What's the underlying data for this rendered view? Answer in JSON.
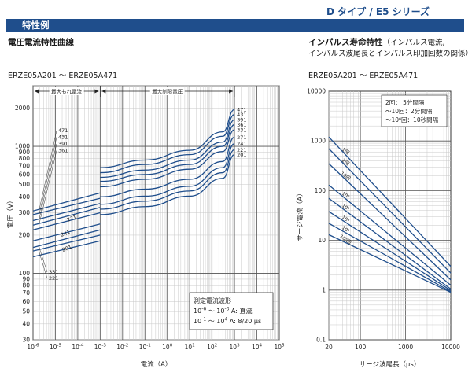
{
  "header": {
    "series_title": "D タイプ  /  E5 シリーズ",
    "section_label": "特性例"
  },
  "chart_data": [
    {
      "type": "line",
      "title": "電圧電流特性曲線",
      "subtitle": "ERZE05A201 ～ ERZE05A471",
      "xlabel": "電流（A）",
      "ylabel": "電圧（V）",
      "x_scale": "log",
      "y_scale": "log",
      "xlim": [
        1e-06,
        100000.0
      ],
      "ylim": [
        30,
        3000
      ],
      "x_ticks": [
        {
          "v": 1e-06,
          "base": "10",
          "exp": "-6"
        },
        {
          "v": 1e-05,
          "base": "10",
          "exp": "-5"
        },
        {
          "v": 0.0001,
          "base": "10",
          "exp": "-4"
        },
        {
          "v": 0.001,
          "base": "10",
          "exp": "-3"
        },
        {
          "v": 0.01,
          "base": "10",
          "exp": "-2"
        },
        {
          "v": 0.1,
          "base": "10",
          "exp": "-1"
        },
        {
          "v": 1,
          "base": "10",
          "exp": "0"
        },
        {
          "v": 10,
          "base": "10",
          "exp": "1"
        },
        {
          "v": 100,
          "base": "10",
          "exp": "2"
        },
        {
          "v": 1000,
          "base": "10",
          "exp": "3"
        },
        {
          "v": 10000,
          "base": "10",
          "exp": "4"
        },
        {
          "v": 100000,
          "base": "10",
          "exp": "5"
        }
      ],
      "y_ticks": [
        {
          "v": 30,
          "label": "30"
        },
        {
          "v": 40,
          "label": "40"
        },
        {
          "v": 50,
          "label": "50"
        },
        {
          "v": 60,
          "label": "60"
        },
        {
          "v": 70,
          "label": "70"
        },
        {
          "v": 80,
          "label": "80"
        },
        {
          "v": 90,
          "label": "90"
        },
        {
          "v": 100,
          "label": "100"
        },
        {
          "v": 200,
          "label": "200"
        },
        {
          "v": 300,
          "label": "300"
        },
        {
          "v": 400,
          "label": "400"
        },
        {
          "v": 500,
          "label": "500"
        },
        {
          "v": 600,
          "label": "600"
        },
        {
          "v": 700,
          "label": "700"
        },
        {
          "v": 800,
          "label": "800"
        },
        {
          "v": 900,
          "label": "900"
        },
        {
          "v": 1000,
          "label": "1000"
        },
        {
          "v": 2000,
          "label": "2000"
        }
      ],
      "regions": [
        {
          "label": "最大もれ電流",
          "x_from": 1e-06,
          "x_to": 0.001
        },
        {
          "label": "最大制限電圧",
          "x_from": 0.001,
          "x_to": 1000.0
        }
      ],
      "legend_box": {
        "title": "測定電流波形",
        "lines": [
          {
            "base": "10",
            "exp1": "-6",
            "mid": " ～ 10",
            "exp2": "-3",
            "tail": " A: 直流"
          },
          {
            "base": "10",
            "exp1": "-1",
            "mid": " ～ 10",
            "exp2": "4",
            "tail": " A: 8/20 μs"
          }
        ]
      },
      "series": [
        {
          "name": "471",
          "leak_y": [
            310,
            430
          ],
          "clamp_y": [
            680,
            780,
            930,
            1300,
            1950
          ]
        },
        {
          "name": "431",
          "leak_y": [
            290,
            390
          ],
          "clamp_y": [
            620,
            720,
            860,
            1200,
            1780
          ]
        },
        {
          "name": "391",
          "leak_y": [
            260,
            355
          ],
          "clamp_y": [
            570,
            650,
            780,
            1080,
            1620
          ]
        },
        {
          "name": "361",
          "leak_y": [
            240,
            330
          ],
          "clamp_y": [
            530,
            600,
            720,
            1000,
            1480
          ]
        },
        {
          "name": "331",
          "leak_y": [
            220,
            300
          ],
          "clamp_y": [
            480,
            550,
            660,
            910,
            1350
          ]
        },
        {
          "name": "271",
          "leak_y": [
            180,
            245
          ],
          "clamp_y": [
            400,
            460,
            550,
            760,
            1180
          ]
        },
        {
          "name": "241",
          "leak_y": [
            160,
            220
          ],
          "clamp_y": [
            350,
            405,
            485,
            680,
            1050
          ]
        },
        {
          "name": "221",
          "leak_y": [
            150,
            200
          ],
          "clamp_y": [
            320,
            370,
            445,
            620,
            940
          ]
        },
        {
          "name": "201",
          "leak_y": [
            135,
            180
          ],
          "clamp_y": [
            290,
            335,
            405,
            560,
            860
          ]
        }
      ],
      "series_x": {
        "leak_x": [
          1e-06,
          0.001
        ],
        "clamp_x": [
          0.001,
          0.1,
          10,
          300,
          1000
        ]
      },
      "left_labels_top": [
        "471",
        "431",
        "391",
        "361"
      ],
      "left_labels_bottom": [
        "331",
        "221"
      ],
      "inline_labels": [
        "271",
        "241",
        "201"
      ]
    },
    {
      "type": "line",
      "title": "インパルス寿命特性",
      "title_note": "（インパルス電流,",
      "title_note2": "インパルス波尾長とインパルス印加回数の関係）",
      "subtitle": "ERZE05A201 ～ ERZE05A471",
      "xlabel": "サージ波尾長（μs）",
      "ylabel": "サージ電流（A）",
      "x_scale": "log",
      "y_scale": "log",
      "xlim": [
        20,
        10000
      ],
      "ylim": [
        0.1,
        10000
      ],
      "x_ticks": [
        {
          "v": 20,
          "label": "20"
        },
        {
          "v": 100,
          "label": "100"
        },
        {
          "v": 1000,
          "label": "1000"
        },
        {
          "v": 10000,
          "label": "10000"
        }
      ],
      "y_ticks": [
        {
          "v": 0.1,
          "label": "0.1"
        },
        {
          "v": 1,
          "label": "1"
        },
        {
          "v": 10,
          "label": "10"
        },
        {
          "v": 100,
          "label": "100"
        },
        {
          "v": 1000,
          "label": "1000"
        },
        {
          "v": 10000,
          "label": "10000"
        }
      ],
      "note_lines": [
        "2回：  5分間隔",
        "～10回：2分間隔",
        "～10⁶回：10秒間隔"
      ],
      "series": [
        {
          "name": "1回",
          "x": [
            20,
            10000
          ],
          "y": [
            1200,
            3
          ]
        },
        {
          "name": "2回",
          "x": [
            20,
            10000
          ],
          "y": [
            700,
            2.2
          ]
        },
        {
          "name": "10回",
          "x": [
            20,
            10000
          ],
          "y": [
            350,
            1.6
          ]
        },
        {
          "name": "10²回",
          "x": [
            20,
            10000
          ],
          "y": [
            130,
            1.25
          ]
        },
        {
          "name": "10³回",
          "x": [
            20,
            10000
          ],
          "y": [
            70,
            1.05
          ]
        },
        {
          "name": "10⁴回",
          "x": [
            20,
            10000
          ],
          "y": [
            38,
            0.98
          ]
        },
        {
          "name": "10⁵回",
          "x": [
            20,
            10000
          ],
          "y": [
            22,
            0.93
          ]
        },
        {
          "name": "10⁶回",
          "x": [
            20,
            10000
          ],
          "y": [
            13,
            0.9
          ]
        }
      ],
      "series_labels": [
        "1回",
        "2回",
        "10回",
        "10²",
        "10³",
        "10⁴",
        "10⁵",
        "10⁶回"
      ]
    }
  ]
}
